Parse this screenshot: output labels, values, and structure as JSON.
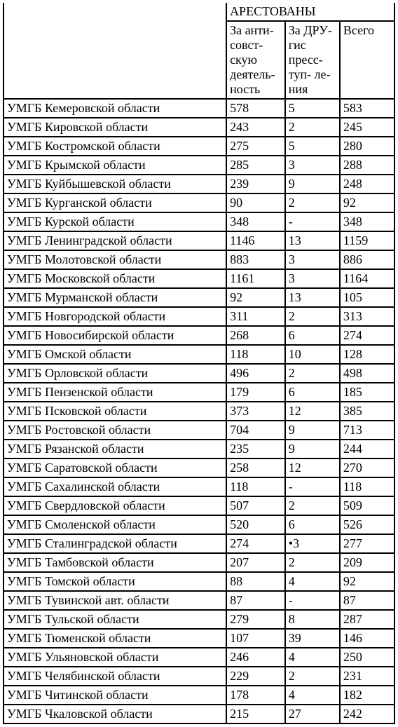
{
  "table": {
    "background_color": "#ffffff",
    "border_color": "#000000",
    "font_family": "Times New Roman",
    "font_size_pt": 13,
    "text_color": "#000000",
    "header": {
      "group_label": "АРЕСТОВАНЫ",
      "col1": "За анти-\nсовст-\nскую\nдеятель-\nность",
      "col2": "За\nДРУ-\nгис\nпресс-\nтуп-\nле-ния",
      "col3": "Всего"
    },
    "rows": [
      {
        "name": "УМГБ Кемеровской области",
        "c1": "578",
        "c2": "5",
        "c3": "583"
      },
      {
        "name": "УМГБ Кировской области",
        "c1": "243",
        "c2": "2",
        "c3": "245"
      },
      {
        "name": "УМГБ Костромской области",
        "c1": "275",
        "c2": "5",
        "c3": "280"
      },
      {
        "name": "УМГБ Крымской области",
        "c1": "285",
        "c2": "3",
        "c3": "288"
      },
      {
        "name": "УМГБ Куйбышевской области",
        "c1": "239",
        "c2": "9",
        "c3": "248"
      },
      {
        "name": "УМГБ Курганской области",
        "c1": "90",
        "c2": "2",
        "c3": "92"
      },
      {
        "name": "УМГБ Курской области",
        "c1": "348",
        "c2": "-",
        "c3": "348"
      },
      {
        "name": "УМГБ Ленинградской области",
        "c1": "1146",
        "c2": "13",
        "c3": "1159"
      },
      {
        "name": "УМГБ Молотовской области",
        "c1": "883",
        "c2": "3",
        "c3": "886"
      },
      {
        "name": "УМГБ Московской области",
        "c1": "1161",
        "c2": "3",
        "c3": "1164"
      },
      {
        "name": "УМГБ Мурманской области",
        "c1": "92",
        "c2": "13",
        "c3": "105"
      },
      {
        "name": "УМГБ Новгородской области",
        "c1": "311",
        "c2": "2",
        "c3": "313"
      },
      {
        "name": "УМГБ Новосибирской области",
        "c1": "268",
        "c2": "6",
        "c3": "274"
      },
      {
        "name": "УМГБ Омской области",
        "c1": "118",
        "c2": "10",
        "c3": "128"
      },
      {
        "name": "УМГБ Орловской области",
        "c1": "496",
        "c2": "2",
        "c3": "498"
      },
      {
        "name": "УМГБ Пензенской области",
        "c1": "179",
        "c2": "6",
        "c3": "185"
      },
      {
        "name": "УМГБ Псковской области",
        "c1": "373",
        "c2": "12",
        "c3": "385"
      },
      {
        "name": "УМГБ Ростовской области",
        "c1": "704",
        "c2": "9",
        "c3": "713"
      },
      {
        "name": "УМГБ Рязанской области",
        "c1": "235",
        "c2": "9",
        "c3": "244"
      },
      {
        "name": "УМГБ Саратовской области",
        "c1": "258",
        "c2": "12",
        "c3": "270"
      },
      {
        "name": "УМГБ Сахалинской области",
        "c1": "118",
        "c2": "-",
        "c3": "118"
      },
      {
        "name": "УМГБ Свердловской области",
        "c1": "507",
        "c2": "2",
        "c3": "509"
      },
      {
        "name": "УМГБ Смоленской области",
        "c1": "520",
        "c2": "6",
        "c3": "526"
      },
      {
        "name": "УМГБ Сталинградской области",
        "c1": "274",
        "c2": "•3",
        "c3": "277"
      },
      {
        "name": "УМГБ Тамбовской области",
        "c1": "207",
        "c2": "2",
        "c3": "209"
      },
      {
        "name": "УМГБ Томской области",
        "c1": "88",
        "c2": "4",
        "c3": "92"
      },
      {
        "name": "УМГБ Тувинской авт. области",
        "c1": "87",
        "c2": "-",
        "c3": "87"
      },
      {
        "name": "УМГБ Тульской области",
        "c1": "279",
        "c2": "8",
        "c3": "287"
      },
      {
        "name": "УМГБ Тюменской области",
        "c1": "107",
        "c2": "39",
        "c3": "146"
      },
      {
        "name": "УМГБ Ульяновской области",
        "c1": "246",
        "c2": "4",
        "c3": "250"
      },
      {
        "name": "УМГБ Челябинской области",
        "c1": "229",
        "c2": "2",
        "c3": "231"
      },
      {
        "name": "УМГБ Читинской области",
        "c1": "178",
        "c2": "4",
        "c3": "182"
      },
      {
        "name": "УМГБ Чкаловской области",
        "c1": "215",
        "c2": "27",
        "c3": "242"
      }
    ]
  }
}
